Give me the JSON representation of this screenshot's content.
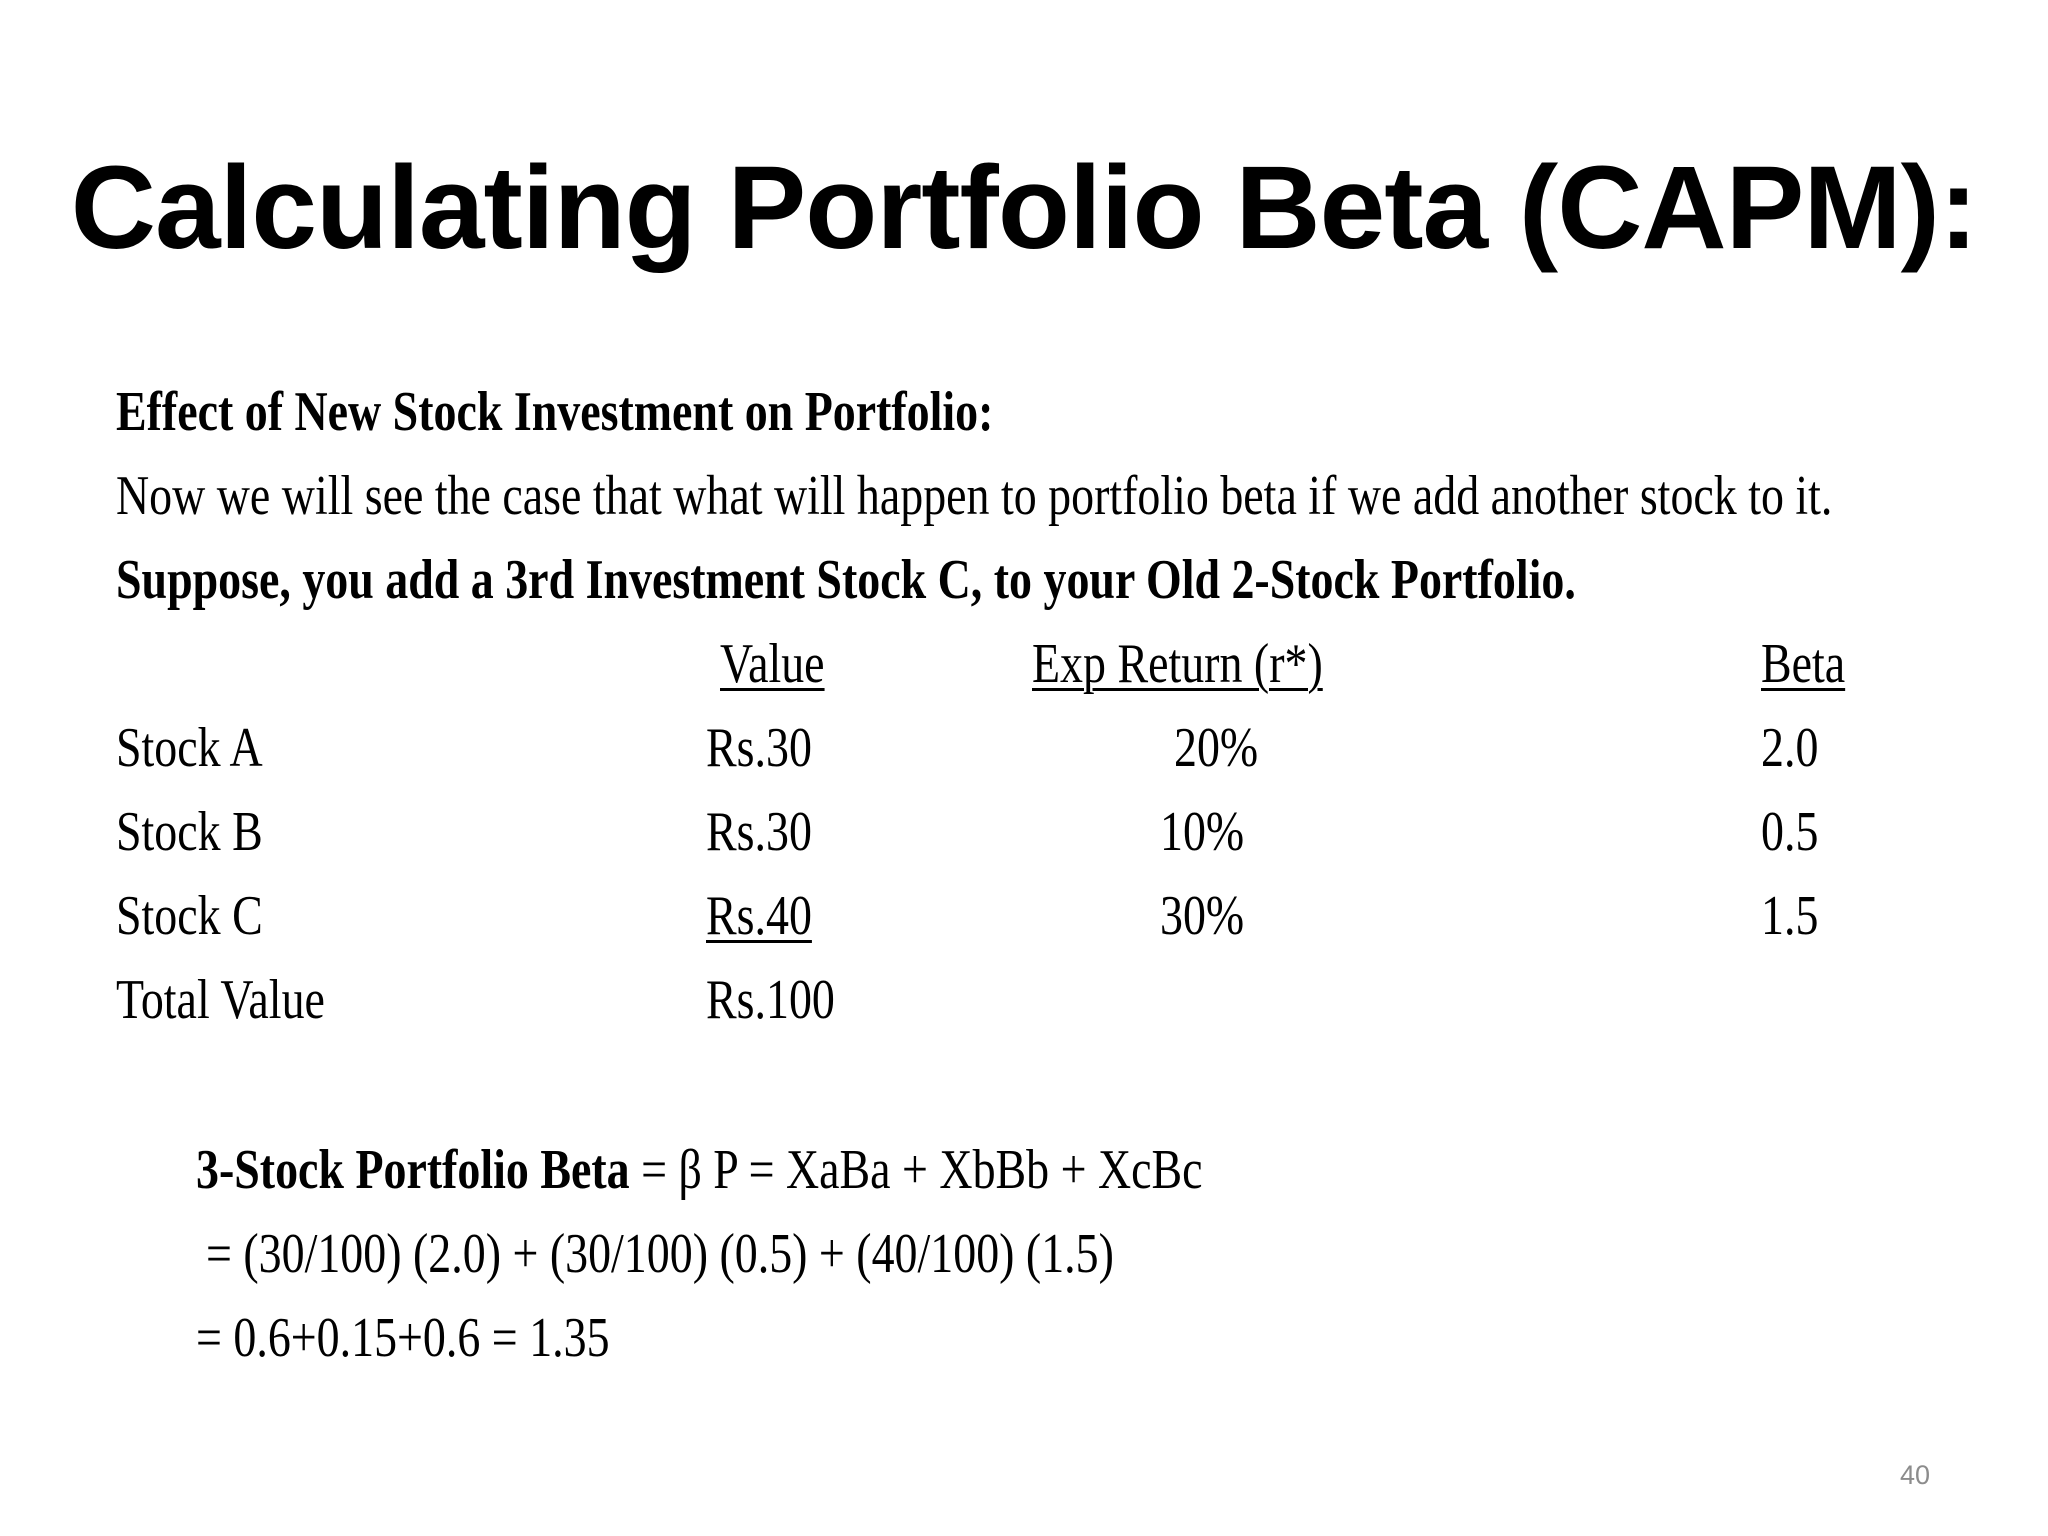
{
  "slide": {
    "title": "Calculating Portfolio Beta (CAPM):",
    "page_number": "40"
  },
  "content": {
    "heading": "Effect of New Stock Investment on Portfolio:",
    "intro": "Now we will see the case that what will happen to portfolio beta if we add another stock to it.",
    "suppose": "Suppose, you add a 3rd Investment Stock C, to your Old 2-Stock Portfolio."
  },
  "table": {
    "headers": {
      "value": "Value",
      "exp_return": "Exp Return (r*)",
      "beta": "Beta"
    },
    "rows": [
      {
        "name": "Stock A",
        "value": "Rs.30",
        "exp_return": "20%",
        "beta": "2.0"
      },
      {
        "name": "Stock B",
        "value": "Rs.30",
        "exp_return": "10%",
        "beta": "0.5"
      },
      {
        "name": "Stock C",
        "value": "Rs.40",
        "exp_return": "30%",
        "beta": "1.5"
      }
    ],
    "total": {
      "name": "Total Value",
      "value": "Rs.100"
    }
  },
  "formula": {
    "label": "3-Stock Portfolio Beta",
    "expression": " = β P = XaBa + XbBb + XcBc",
    "line2": " = (30/100) (2.0) + (30/100) (0.5) + (40/100) (1.5)",
    "line3": "= 0.6+0.15+0.6 = 1.35"
  }
}
